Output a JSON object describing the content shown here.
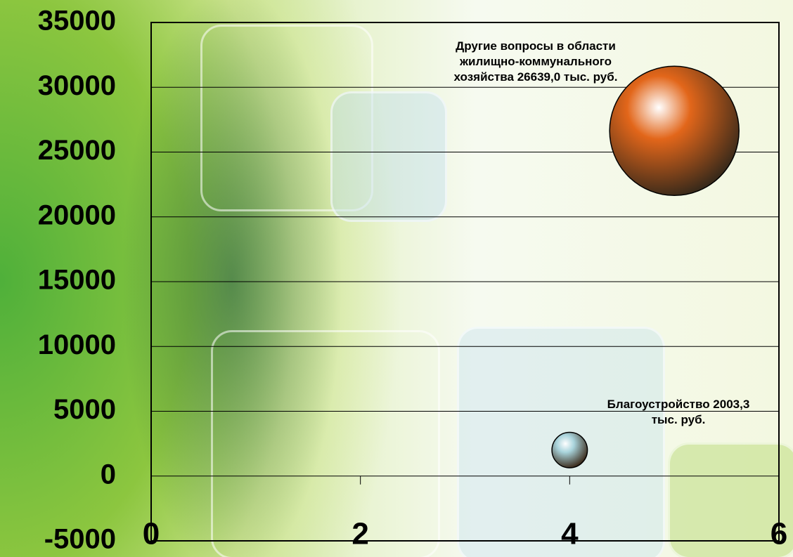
{
  "chart_data": {
    "type": "bubble",
    "x": [
      4,
      5
    ],
    "values": [
      2003.3,
      26639.0
    ],
    "sizes": [
      2003.3,
      26639.0
    ],
    "colors": [
      "#a9d4dc",
      "#e2661a"
    ],
    "value_labels": [
      "Благоустройство 2003,3 тыс. руб.",
      "Другие вопросы в области жилищно-коммунального хозяйства 26639,0 тыс. руб."
    ],
    "xlim": [
      0,
      6
    ],
    "xticks": [
      0,
      2,
      4,
      6
    ],
    "ylim": [
      -5000,
      35000
    ],
    "yticks": [
      -5000,
      0,
      5000,
      10000,
      15000,
      20000,
      25000,
      30000,
      35000
    ],
    "grid": true
  }
}
